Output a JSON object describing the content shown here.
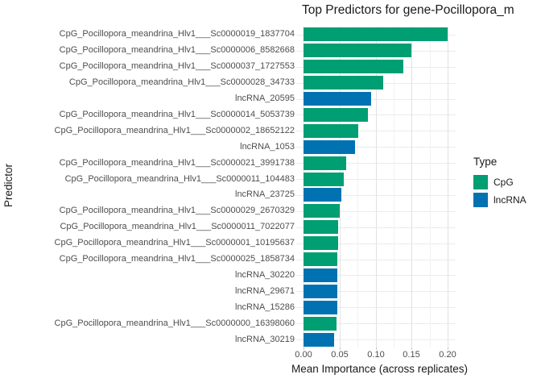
{
  "title": "Top Predictors for gene-Pocillopora_m",
  "chart_data": {
    "type": "bar",
    "orientation": "horizontal",
    "title": "Top Predictors for gene-Pocillopora_m",
    "xlabel": "Mean Importance (across replicates)",
    "ylabel": "Predictor",
    "xlim": [
      -0.0105,
      0.2105
    ],
    "x_ticks": [
      0.0,
      0.05,
      0.1,
      0.15,
      0.2
    ],
    "x_tick_labels": [
      "0.00",
      "0.05",
      "0.10",
      "0.15",
      "0.20"
    ],
    "x_minor_ticks": [
      0.025,
      0.075,
      0.125,
      0.175
    ],
    "grid": true,
    "legend_position": "right",
    "colors": {
      "CpG": "#009E73",
      "lncRNA": "#0072B2"
    },
    "legend": {
      "title": "Type",
      "items": [
        {
          "label": "CpG",
          "color": "#009E73"
        },
        {
          "label": "lncRNA",
          "color": "#0072B2"
        }
      ]
    },
    "bars": [
      {
        "label": "CpG_Pocillopora_meandrina_Hlv1___Sc0000019_1837704",
        "type": "CpG",
        "value": 0.2
      },
      {
        "label": "CpG_Pocillopora_meandrina_Hlv1___Sc0000006_8582668",
        "type": "CpG",
        "value": 0.15
      },
      {
        "label": "CpG_Pocillopora_meandrina_Hlv1___Sc0000037_1727553",
        "type": "CpG",
        "value": 0.139
      },
      {
        "label": "CpG_Pocillopora_meandrina_Hlv1___Sc0000028_34733",
        "type": "CpG",
        "value": 0.111
      },
      {
        "label": "lncRNA_20595",
        "type": "lncRNA",
        "value": 0.094
      },
      {
        "label": "CpG_Pocillopora_meandrina_Hlv1___Sc0000014_5053739",
        "type": "CpG",
        "value": 0.089
      },
      {
        "label": "CpG_Pocillopora_meandrina_Hlv1___Sc0000002_18652122",
        "type": "CpG",
        "value": 0.076
      },
      {
        "label": "lncRNA_1053",
        "type": "lncRNA",
        "value": 0.071
      },
      {
        "label": "CpG_Pocillopora_meandrina_Hlv1___Sc0000021_3991738",
        "type": "CpG",
        "value": 0.059
      },
      {
        "label": "CpG_Pocillopora_meandrina_Hlv1___Sc0000011_104483",
        "type": "CpG",
        "value": 0.056
      },
      {
        "label": "lncRNA_23725",
        "type": "lncRNA",
        "value": 0.053
      },
      {
        "label": "CpG_Pocillopora_meandrina_Hlv1___Sc0000029_2670329",
        "type": "CpG",
        "value": 0.05
      },
      {
        "label": "CpG_Pocillopora_meandrina_Hlv1___Sc0000011_7022077",
        "type": "CpG",
        "value": 0.048
      },
      {
        "label": "CpG_Pocillopora_meandrina_Hlv1___Sc0000001_10195637",
        "type": "CpG",
        "value": 0.048
      },
      {
        "label": "CpG_Pocillopora_meandrina_Hlv1___Sc0000025_1858734",
        "type": "CpG",
        "value": 0.047
      },
      {
        "label": "lncRNA_30220",
        "type": "lncRNA",
        "value": 0.047
      },
      {
        "label": "lncRNA_29671",
        "type": "lncRNA",
        "value": 0.047
      },
      {
        "label": "lncRNA_15286",
        "type": "lncRNA",
        "value": 0.047
      },
      {
        "label": "CpG_Pocillopora_meandrina_Hlv1___Sc0000000_16398060",
        "type": "CpG",
        "value": 0.046
      },
      {
        "label": "lncRNA_30219",
        "type": "lncRNA",
        "value": 0.042
      }
    ]
  }
}
